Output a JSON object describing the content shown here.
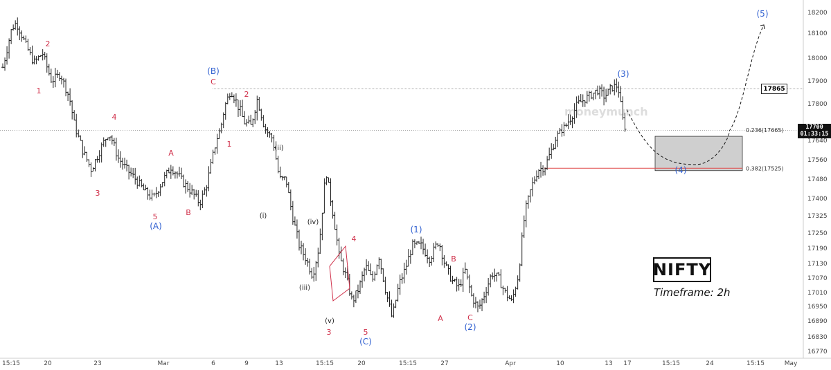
{
  "symbol_label": "NIFTY",
  "timeframe_label": "Timeframe: 2h",
  "watermark": "moneymunch",
  "current_price": "17700",
  "countdown": "01:33:15",
  "chart_data": {
    "type": "line",
    "subtype": "ohlc-bars",
    "y_ticks": [
      18200,
      18100,
      18000,
      17900,
      17800,
      17720,
      17640,
      17560,
      17480,
      17400,
      17325,
      17250,
      17190,
      17130,
      17070,
      17010,
      16950,
      16890,
      16830,
      16770
    ],
    "x_ticks": [
      "15:15",
      "20",
      "23",
      "Mar",
      "6",
      "9",
      "13",
      "15:15",
      "20",
      "15:15",
      "27",
      "Apr",
      "10",
      "13",
      "17",
      "15:15",
      "24",
      "15:15",
      "May"
    ],
    "ylim": [
      16740,
      18240
    ],
    "price_path": [
      [
        0,
        17960
      ],
      [
        8,
        18120
      ],
      [
        12,
        18150
      ],
      [
        20,
        18060
      ],
      [
        28,
        17980
      ],
      [
        36,
        18020
      ],
      [
        44,
        17900
      ],
      [
        52,
        17930
      ],
      [
        60,
        17830
      ],
      [
        66,
        17700
      ],
      [
        72,
        17600
      ],
      [
        80,
        17520
      ],
      [
        88,
        17600
      ],
      [
        96,
        17680
      ],
      [
        104,
        17570
      ],
      [
        112,
        17520
      ],
      [
        120,
        17480
      ],
      [
        128,
        17430
      ],
      [
        136,
        17400
      ],
      [
        144,
        17470
      ],
      [
        152,
        17530
      ],
      [
        158,
        17500
      ],
      [
        164,
        17460
      ],
      [
        172,
        17420
      ],
      [
        178,
        17380
      ],
      [
        184,
        17450
      ],
      [
        192,
        17620
      ],
      [
        200,
        17780
      ],
      [
        206,
        17860
      ],
      [
        212,
        17800
      ],
      [
        218,
        17740
      ],
      [
        224,
        17720
      ],
      [
        230,
        17820
      ],
      [
        238,
        17700
      ],
      [
        244,
        17650
      ],
      [
        250,
        17480
      ],
      [
        256,
        17480
      ],
      [
        262,
        17320
      ],
      [
        268,
        17200
      ],
      [
        274,
        17150
      ],
      [
        280,
        17080
      ],
      [
        286,
        17200
      ],
      [
        292,
        17520
      ],
      [
        298,
        17350
      ],
      [
        304,
        17160
      ],
      [
        310,
        17080
      ],
      [
        316,
        16970
      ],
      [
        322,
        17030
      ],
      [
        328,
        17120
      ],
      [
        334,
        17060
      ],
      [
        340,
        17160
      ],
      [
        346,
        17020
      ],
      [
        352,
        16900
      ],
      [
        358,
        17040
      ],
      [
        364,
        17110
      ],
      [
        370,
        17200
      ],
      [
        378,
        17200
      ],
      [
        386,
        17150
      ],
      [
        394,
        17220
      ],
      [
        400,
        17120
      ],
      [
        406,
        17060
      ],
      [
        412,
        17030
      ],
      [
        418,
        17100
      ],
      [
        424,
        16990
      ],
      [
        430,
        16940
      ],
      [
        436,
        17010
      ],
      [
        442,
        17090
      ],
      [
        448,
        17070
      ],
      [
        454,
        17010
      ],
      [
        460,
        16970
      ],
      [
        466,
        17080
      ],
      [
        472,
        17340
      ],
      [
        478,
        17450
      ],
      [
        484,
        17520
      ],
      [
        490,
        17530
      ],
      [
        496,
        17600
      ],
      [
        502,
        17680
      ],
      [
        508,
        17720
      ],
      [
        514,
        17760
      ],
      [
        520,
        17800
      ],
      [
        526,
        17820
      ],
      [
        532,
        17840
      ],
      [
        538,
        17860
      ],
      [
        544,
        17830
      ],
      [
        550,
        17870
      ],
      [
        556,
        17880
      ],
      [
        560,
        17750
      ],
      [
        564,
        17700
      ]
    ],
    "reference_levels": [
      {
        "label": "17865",
        "value": 17865
      },
      {
        "label": "17700",
        "value": 17700
      }
    ],
    "fib_levels": [
      {
        "label": "0.236(17665)",
        "value": 17665
      },
      {
        "label": "0.382(17525)",
        "value": 17525
      }
    ],
    "target_zone": {
      "label": "(4)",
      "low": 17515,
      "high": 17665
    },
    "projection": [
      [
        0,
        17780
      ],
      [
        0.3,
        17570
      ],
      [
        0.5,
        17540
      ],
      [
        0.75,
        17700
      ],
      [
        1.0,
        18140
      ]
    ],
    "wave_labels": {
      "red": [
        "2",
        "1",
        "4",
        "3",
        "A",
        "5",
        "B",
        "C",
        "2",
        "1",
        "4",
        "3",
        "5",
        "B",
        "A",
        "C"
      ],
      "blue": [
        "(A)",
        "(B)",
        "(C)",
        "(1)",
        "(2)",
        "(3)",
        "(4)",
        "(5)"
      ],
      "black": [
        "(ii)",
        "(i)",
        "(iv)",
        "(iii)",
        "(v)"
      ]
    }
  }
}
